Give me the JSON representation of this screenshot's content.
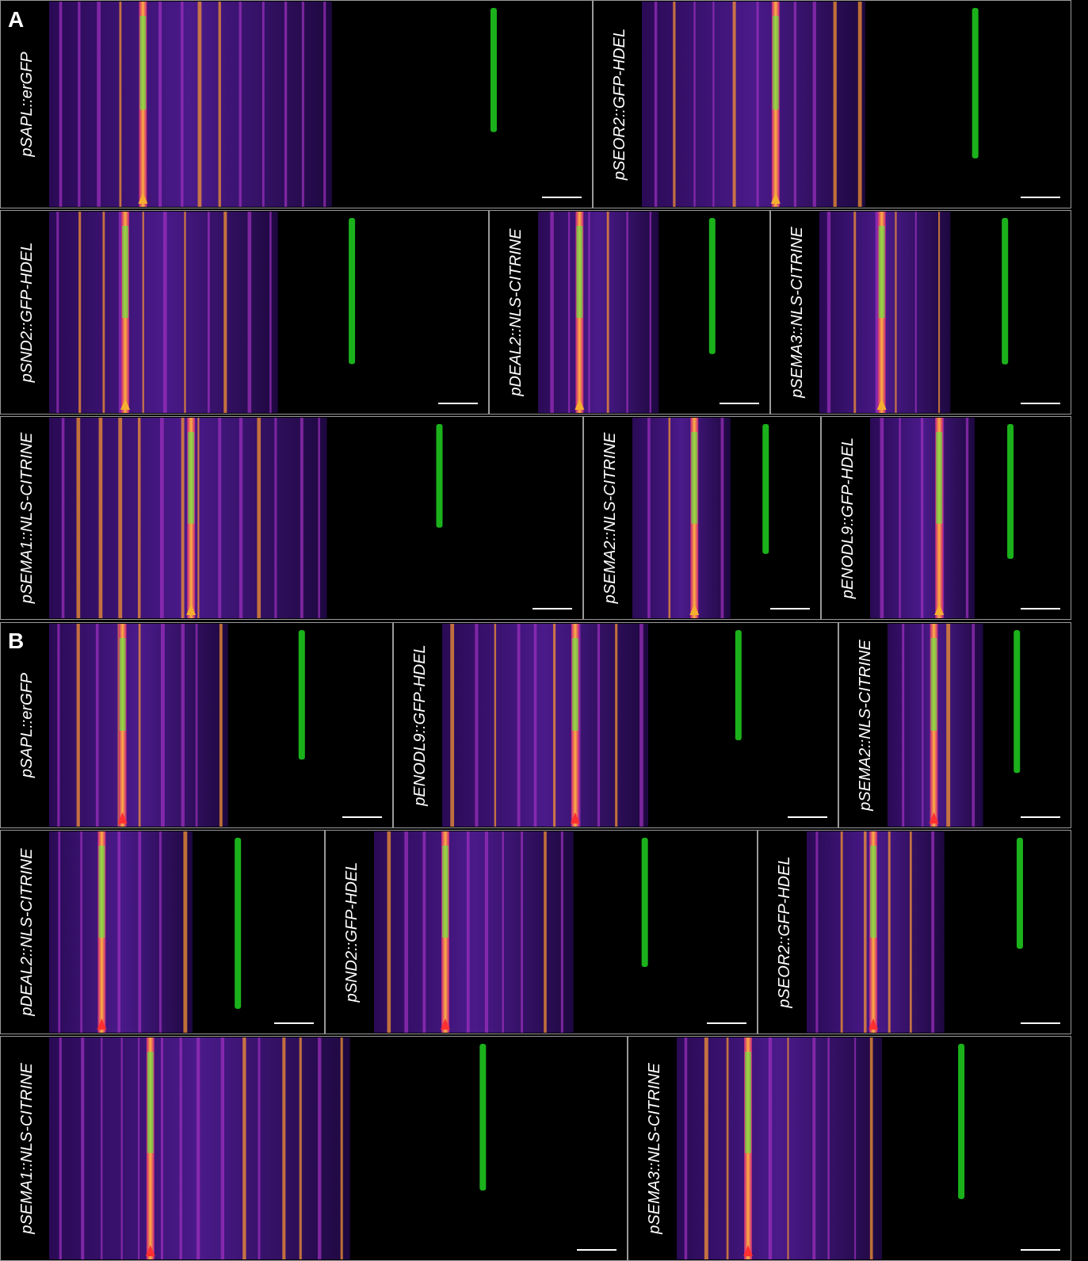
{
  "sections": [
    {
      "letter": "A",
      "panels": [
        {
          "label": "pSAPL::erGFP"
        },
        {
          "label": "pSEOR2::GFP-HDEL"
        },
        {
          "label": "pSND2::GFP-HDEL"
        },
        {
          "label": "pDEAL2::NLS-CITRINE"
        },
        {
          "label": "pSEMA3::NLS-CITRINE"
        },
        {
          "label": "pSEMA1::NLS-CITRINE"
        },
        {
          "label": "pSEMA2::NLS-CITRINE"
        },
        {
          "label": "pENODL9::GFP-HDEL"
        }
      ]
    },
    {
      "letter": "B",
      "panels": [
        {
          "label": "pSAPL::erGFP"
        },
        {
          "label": "pENODL9::GFP-HDEL"
        },
        {
          "label": "pSEMA2::NLS-CITRINE"
        },
        {
          "label": "pDEAL2::NLS-CITRINE"
        },
        {
          "label": "pSND2::GFP-HDEL"
        },
        {
          "label": "pSEOR2::GFP-HDEL"
        },
        {
          "label": "pSEMA1::NLS-CITRINE"
        },
        {
          "label": "pSEMA3::NLS-CITRINE"
        }
      ]
    }
  ]
}
